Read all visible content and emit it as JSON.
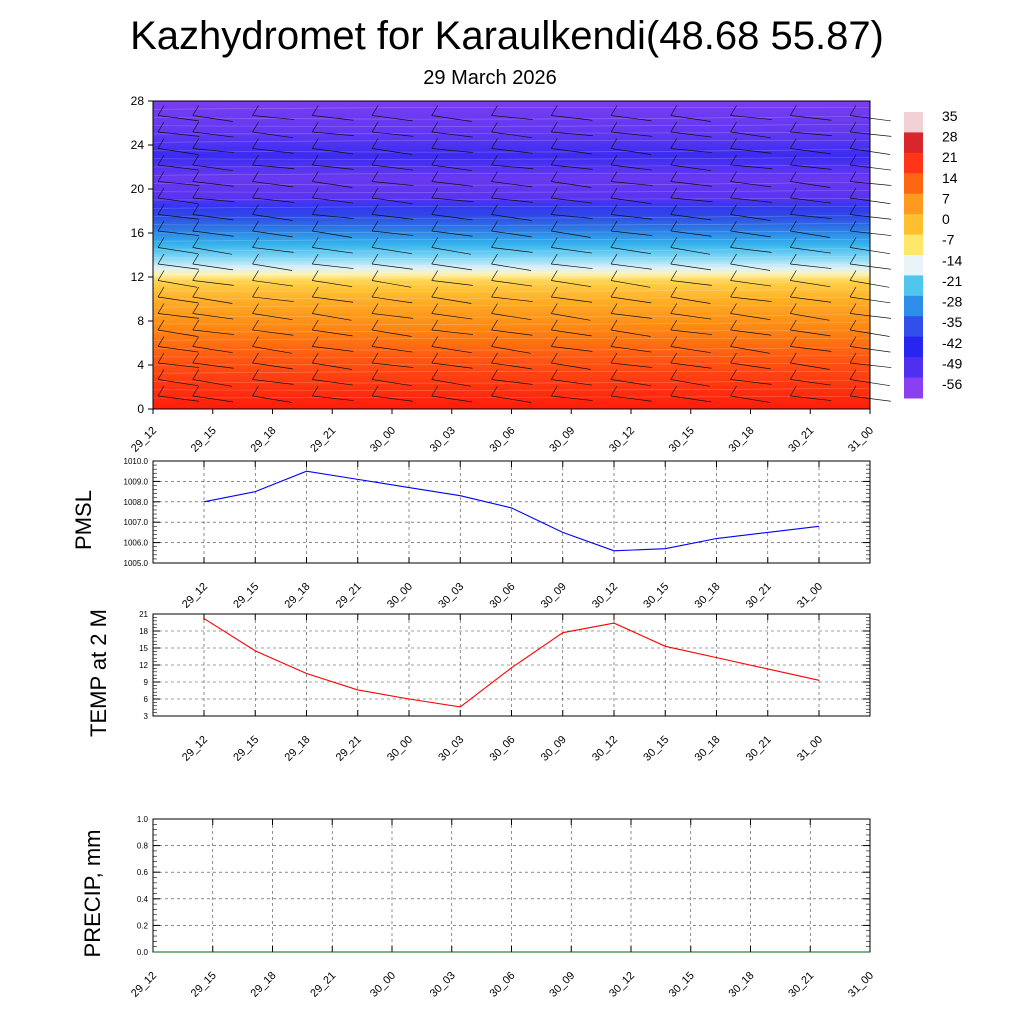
{
  "title": "Kazhydromet for Karaulkendi(48.68 55.87)",
  "subtitle": "29 March 2026",
  "time_labels": [
    "29_12",
    "29_15",
    "29_18",
    "29_21",
    "30_00",
    "30_03",
    "30_06",
    "30_09",
    "30_12",
    "30_15",
    "30_18",
    "30_21",
    "31_00"
  ],
  "chart_data": [
    {
      "type": "heatmap",
      "x": [
        "29_12",
        "29_15",
        "29_18",
        "29_21",
        "30_00",
        "30_03",
        "30_06",
        "30_09",
        "30_12",
        "30_15",
        "30_18",
        "30_21",
        "31_00"
      ],
      "xlabel": "",
      "ylabel": "",
      "ylim": [
        0,
        28
      ],
      "y_ticks": [
        0,
        4,
        8,
        12,
        16,
        20,
        24,
        28
      ],
      "colorbar": {
        "labels": [
          "35",
          "28",
          "21",
          "14",
          "7",
          "0",
          "-7",
          "-14",
          "-21",
          "-28",
          "-35",
          "-42",
          "-49",
          "-56"
        ],
        "colors": [
          "#f2d0d6",
          "#d7262c",
          "#ff3418",
          "#ff6612",
          "#ff9a20",
          "#ffc030",
          "#ffe868",
          "#e8f4f8",
          "#4fc7ec",
          "#2e8de8",
          "#2f4fe8",
          "#2626f0",
          "#5030f0",
          "#8a40f0"
        ]
      },
      "grid": false
    },
    {
      "type": "line",
      "ylabel": "PMSL",
      "x": [
        "29_12",
        "29_15",
        "29_18",
        "29_21",
        "30_00",
        "30_03",
        "30_06",
        "30_09",
        "30_12",
        "30_15",
        "30_18",
        "30_21",
        "31_00"
      ],
      "series": [
        {
          "values": [
            1008.0,
            1008.5,
            1009.5,
            1009.1,
            1008.7,
            1008.3,
            1007.7,
            1006.5,
            1005.6,
            1005.7,
            1006.2,
            1006.5,
            1006.8
          ]
        }
      ],
      "ylim": [
        1005.0,
        1010.0
      ],
      "y_ticks": [
        "1005.0",
        "1006.0",
        "1007.0",
        "1008.0",
        "1009.0",
        "1010.0"
      ],
      "color": "#0000ff",
      "grid": true
    },
    {
      "type": "line",
      "ylabel": "TEMP at 2 M",
      "x": [
        "29_12",
        "29_15",
        "29_18",
        "29_21",
        "30_00",
        "30_03",
        "30_06",
        "30_09",
        "30_12",
        "30_15",
        "30_18",
        "30_21",
        "31_00"
      ],
      "series": [
        {
          "values": [
            20.2,
            14.5,
            10.5,
            7.6,
            6.0,
            4.6,
            11.5,
            17.7,
            19.4,
            15.3,
            13.3,
            11.3,
            9.3
          ]
        }
      ],
      "ylim": [
        3,
        21
      ],
      "y_ticks": [
        "3",
        "6",
        "9",
        "12",
        "15",
        "18",
        "21"
      ],
      "color": "#ff0000",
      "grid": true
    },
    {
      "type": "line",
      "ylabel": "PRECIP, mm",
      "x": [
        "29_12",
        "29_15",
        "29_18",
        "29_21",
        "30_00",
        "30_03",
        "30_06",
        "30_09",
        "30_12",
        "30_15",
        "30_18",
        "30_21",
        "31_00"
      ],
      "series": [
        {
          "values": [
            0,
            0,
            0,
            0,
            0,
            0,
            0,
            0,
            0,
            0,
            0,
            0,
            0
          ]
        }
      ],
      "ylim": [
        0.0,
        1.0
      ],
      "y_ticks": [
        "0.0",
        "0.2",
        "0.4",
        "0.6",
        "0.8",
        "1.0"
      ],
      "color": "#006400",
      "grid": true
    }
  ]
}
